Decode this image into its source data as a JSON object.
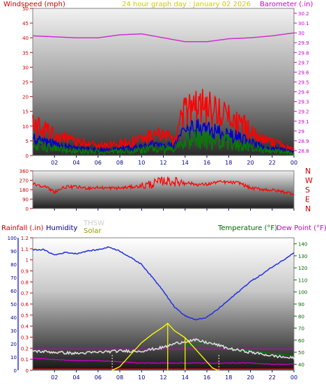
{
  "header": {
    "left": "Windspeed (mph)",
    "center": "24 hour graph day : January 02 2026",
    "right": "Barometer (.in)"
  },
  "panel3_labels": {
    "rainfall": "Rainfall (.in)",
    "humidity": "Humidity",
    "thsw": "THSW",
    "solar": "Solar",
    "temperature": "Temperature (°F)",
    "dewpoint": "Dew Point (°F)"
  },
  "colors": {
    "wind": "#ff0000",
    "wind_mid": "#0000cc",
    "wind_low": "#008000",
    "barometer": "#cc33cc",
    "direction": "#ff0000",
    "humidity": "#2030e0",
    "thsw": "#dcdcdc",
    "solar": "#ffff00",
    "temperature": "#008000",
    "dewpoint": "#cc00cc",
    "rain": "#ff0000",
    "label_wind": "#cc0000",
    "label_center": "#cccc00",
    "label_baro": "#cc00cc",
    "label_rain": "#cc0000",
    "label_humidity": "#00008b",
    "label_thsw": "#cccccc",
    "label_solar": "#999900",
    "label_temp": "#006400",
    "label_dew": "#cc00cc"
  },
  "x_ticks": [
    "02",
    "04",
    "06",
    "08",
    "10",
    "12",
    "14",
    "16",
    "18",
    "20",
    "22",
    "00"
  ],
  "wind_axis_ticks": [
    "50",
    "45",
    "40",
    "35",
    "30",
    "25",
    "20",
    "15",
    "10",
    "5",
    "0"
  ],
  "baro_axis_ticks": [
    "30.2",
    "30.1",
    "30",
    "29.9",
    "29.8",
    "29.7",
    "29.6",
    "29.5",
    "29.4",
    "29.3",
    "29.2",
    "29.1",
    "29",
    "28.9",
    "28.8"
  ],
  "dir_axis_ticks": [
    "360",
    "270",
    "180",
    "90",
    "0"
  ],
  "dir_labels": [
    "N",
    "W",
    "S",
    "E",
    "N"
  ],
  "rain_axis_ticks": [
    "1.2",
    "1.1",
    "1",
    "0.9",
    "0.8",
    "0.7",
    "0.6",
    "0.5",
    "0.4",
    "0.3",
    "0.2",
    "0.1",
    "0"
  ],
  "hum_axis_ticks": [
    "100",
    "90",
    "80",
    "70",
    "60",
    "50",
    "40",
    "30",
    "20",
    "10",
    "0"
  ],
  "temp_axis_ticks": [
    "140",
    "130",
    "120",
    "110",
    "100",
    "90",
    "80",
    "70",
    "60",
    "50",
    "40"
  ],
  "chart_data": [
    {
      "type": "line",
      "title": "24 hour graph day : January 02 2026",
      "ylabel": "Windspeed (mph)",
      "y2label": "Barometer (.in)",
      "x_hours": [
        0,
        24
      ],
      "ylim": [
        0,
        50
      ],
      "y2lim": [
        28.75,
        30.25
      ],
      "series": [
        {
          "name": "Windspeed (mph)",
          "axis": "y",
          "x": [
            0,
            1,
            2,
            3,
            4,
            5,
            6,
            7,
            8,
            9,
            10,
            11,
            12,
            13,
            14,
            15,
            16,
            17,
            18,
            19,
            20,
            21,
            22,
            23,
            24
          ],
          "values": [
            9,
            8,
            6,
            5,
            4,
            4,
            3,
            3,
            4,
            4,
            5,
            6,
            6,
            5,
            13,
            15,
            14,
            13,
            11,
            10,
            7,
            5,
            4,
            3,
            2
          ]
        },
        {
          "name": "Barometer (.in)",
          "axis": "y2",
          "x": [
            0,
            2,
            4,
            6,
            8,
            10,
            12,
            14,
            16,
            18,
            20,
            22,
            24
          ],
          "values": [
            29.97,
            29.96,
            29.95,
            29.95,
            29.98,
            29.99,
            29.95,
            29.91,
            29.91,
            29.94,
            29.95,
            29.97,
            30.0
          ]
        }
      ]
    },
    {
      "type": "line",
      "ylabel": "Wind direction",
      "ylim": [
        0,
        360
      ],
      "series": [
        {
          "name": "Wind direction",
          "x": [
            0,
            1,
            2,
            3,
            4,
            5,
            6,
            7,
            8,
            9,
            10,
            11,
            12,
            13,
            14,
            15,
            16,
            17,
            18,
            19,
            20,
            21,
            22,
            23,
            24
          ],
          "values": [
            235,
            215,
            160,
            205,
            205,
            195,
            200,
            195,
            195,
            205,
            215,
            235,
            265,
            255,
            250,
            230,
            230,
            255,
            250,
            245,
            195,
            185,
            175,
            160,
            140
          ]
        }
      ]
    },
    {
      "type": "line",
      "ylabel": "Humidity",
      "y2label": "Temperature (°F)",
      "y3label": "Rainfall (.in)",
      "ylim": [
        0,
        100
      ],
      "y2lim": [
        35,
        145
      ],
      "y3lim": [
        0,
        1.2
      ],
      "series": [
        {
          "name": "Humidity",
          "axis": "humidity",
          "x": [
            0,
            1,
            2,
            3,
            4,
            5,
            6,
            7,
            8,
            9,
            10,
            11,
            12,
            13,
            14,
            15,
            16,
            17,
            18,
            19,
            20,
            21,
            22,
            23,
            24
          ],
          "values": [
            91,
            91,
            87,
            89,
            88,
            90,
            91,
            93,
            90,
            85,
            80,
            70,
            60,
            48,
            41,
            38,
            40,
            46,
            53,
            60,
            67,
            72,
            78,
            83,
            89
          ]
        },
        {
          "name": "THSW",
          "axis": "temp",
          "x": [
            0,
            2,
            4,
            6,
            8,
            10,
            12,
            13,
            14,
            15,
            16,
            17,
            18,
            20,
            22,
            24
          ],
          "values": [
            51,
            50,
            49,
            50,
            51,
            51,
            54,
            57,
            59,
            60,
            58,
            56,
            53,
            50,
            47,
            45
          ]
        },
        {
          "name": "Temperature (°F)",
          "axis": "temp",
          "x": [
            14,
            16,
            17,
            18,
            20,
            22,
            24
          ],
          "values": [
            56,
            58,
            56,
            53,
            51,
            49,
            47
          ]
        },
        {
          "name": "Dew Point (°F)",
          "axis": "temp",
          "x": [
            0,
            2,
            4,
            6,
            8,
            10,
            12,
            14,
            16,
            18,
            20,
            22,
            24
          ],
          "values": [
            45,
            44,
            43,
            43,
            42,
            41,
            41,
            41,
            41,
            41,
            41,
            40,
            40
          ]
        },
        {
          "name": "Solar",
          "axis": "temp",
          "x": [
            7.3,
            8,
            9,
            10,
            11,
            12,
            12.4,
            13,
            14,
            15,
            16,
            16.5,
            17
          ],
          "values": [
            35,
            38,
            48,
            58,
            65,
            71,
            74,
            68,
            62,
            52,
            42,
            37,
            35
          ]
        },
        {
          "name": "Rainfall (.in)",
          "axis": "rain",
          "x": [
            0,
            24
          ],
          "values": [
            0.01,
            0.01
          ]
        }
      ]
    }
  ]
}
